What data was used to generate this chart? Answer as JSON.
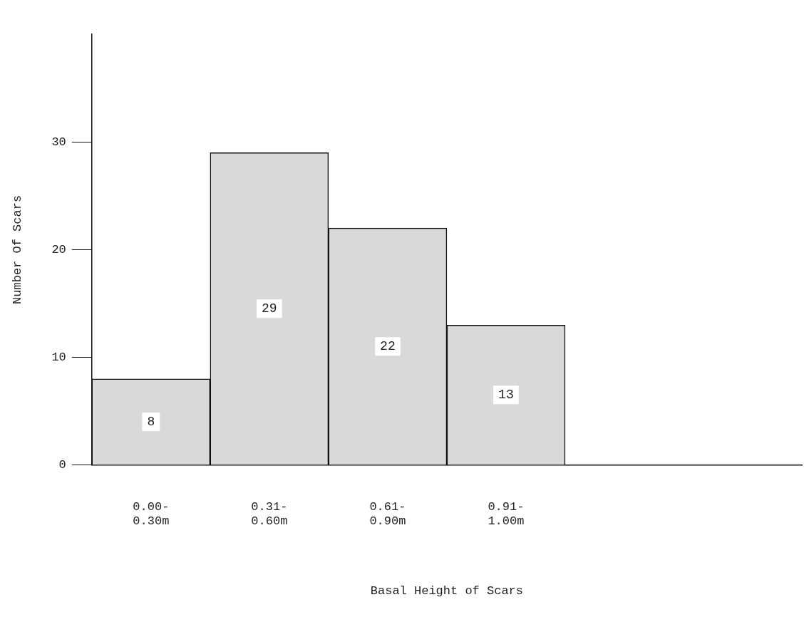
{
  "chart_data": {
    "type": "bar",
    "xlabel": "Basal Height of Scars",
    "ylabel": "Number Of Scars",
    "categories": [
      "0.00-\n0.30m",
      "0.31-\n0.60m",
      "0.61-\n0.90m",
      "0.91-\n1.00m",
      null,
      null
    ],
    "values": [
      8,
      29,
      22,
      13,
      null,
      null
    ],
    "color": "#d9d9d9",
    "ylim": [
      0,
      40
    ],
    "yticks": [
      0,
      10,
      20,
      30
    ],
    "grid": false,
    "legend": false,
    "data_labels": true
  }
}
